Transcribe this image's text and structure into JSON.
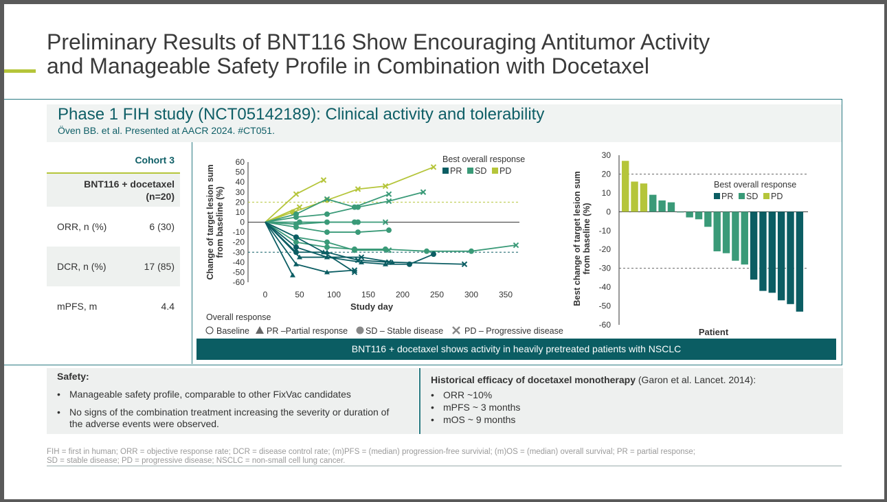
{
  "slide": {
    "title_line1": "Preliminary Results of BNT116 Show Encouraging Antitumor Activity",
    "title_line2": "and Manageable Safety Profile in Combination with Docetaxel",
    "subtitle": "Phase 1 FIH study (NCT05142189): Clinical activity and tolerability",
    "citation": "Öven BB. et al. Presented at AACR 2024. #CT051.",
    "banner": "BNT116 + docetaxel shows activity in heavily pretreated patients with NSCLC",
    "colors": {
      "teal_dark": "#0b5d63",
      "teal_mid": "#3a9a78",
      "lime": "#b5c53a"
    }
  },
  "table": {
    "cohort": "Cohort 3",
    "arm_line1": "BNT116 + docetaxel",
    "arm_line2": "(n=20)",
    "rows": [
      {
        "label": "ORR, n (%)",
        "value": "6 (30)"
      },
      {
        "label": "DCR, n (%)",
        "value": "17 (85)"
      },
      {
        "label": "mPFS, m",
        "value": "4.4"
      }
    ]
  },
  "safety": {
    "heading": "Safety:",
    "bullets": [
      "Manageable safety profile, comparable to other FixVac candidates",
      "No signs of the combination treatment increasing the severity or duration of",
      "the adverse events were observed."
    ]
  },
  "historical": {
    "heading_bold": "Historical efficacy of docetaxel monotherapy",
    "heading_rest": " (Garon et al. Lancet. 2014):",
    "bullets": [
      "ORR ~10%",
      "mPFS ~ 3 months",
      "mOS ~ 9 months"
    ]
  },
  "footnote": {
    "line1": "FIH = first in human; ORR = objective response rate; DCR = disease control rate; (m)PFS = (median) progression-free survivial; (m)OS = (median) overall survival; PR = partial response;",
    "line2": "SD = stable disease; PD = progressive disease; NSCLC = non-small cell lung cancer."
  },
  "chart_data": [
    {
      "type": "line",
      "title": "",
      "xlabel": "Study day",
      "ylabel": "Change of target lesion sum from baseline (%)",
      "xlim": [
        0,
        370
      ],
      "ylim": [
        -60,
        60
      ],
      "x_ticks": [
        0,
        50,
        100,
        150,
        200,
        250,
        300,
        350
      ],
      "y_ticks": [
        60,
        50,
        40,
        30,
        20,
        10,
        0,
        -10,
        -20,
        -30,
        -40,
        -50,
        -60
      ],
      "reference_lines": [
        20,
        -30
      ],
      "legend_title": "Best overall response",
      "legend": [
        {
          "label": "PR",
          "color": "#0b5d63"
        },
        {
          "label": "SD",
          "color": "#3a9a78"
        },
        {
          "label": "PD",
          "color": "#b5c53a"
        }
      ],
      "marker_legend": {
        "title": "Overall response",
        "items": [
          "Baseline",
          "PR –Partial response",
          "SD – Stable disease",
          "PD – Progressive disease"
        ]
      },
      "series": [
        {
          "name": "PD",
          "response": "PD",
          "points": [
            [
              0,
              0,
              "base"
            ],
            [
              45,
              28,
              "x"
            ],
            [
              85,
              42,
              "x"
            ]
          ]
        },
        {
          "name": "PD",
          "response": "PD",
          "points": [
            [
              0,
              0,
              "base"
            ],
            [
              40,
              10,
              "sd"
            ],
            [
              90,
              22,
              "sd"
            ],
            [
              135,
              33,
              "x"
            ],
            [
              175,
              36,
              "x"
            ],
            [
              245,
              55,
              "x"
            ]
          ]
        },
        {
          "name": "PD",
          "response": "PD",
          "points": [
            [
              0,
              0,
              "base"
            ],
            [
              50,
              15,
              "x"
            ]
          ]
        },
        {
          "name": "SD",
          "response": "SD",
          "points": [
            [
              0,
              0,
              "base"
            ],
            [
              45,
              8,
              "sd"
            ],
            [
              90,
              23,
              "x"
            ],
            [
              130,
              15,
              "sd"
            ],
            [
              180,
              28,
              "x"
            ]
          ]
        },
        {
          "name": "SD",
          "response": "SD",
          "points": [
            [
              0,
              0,
              "base"
            ],
            [
              45,
              5,
              "sd"
            ],
            [
              90,
              8,
              "sd"
            ],
            [
              135,
              15,
              "sd"
            ],
            [
              180,
              21,
              "x"
            ],
            [
              230,
              30,
              "x"
            ]
          ]
        },
        {
          "name": "SD",
          "response": "SD",
          "points": [
            [
              0,
              0,
              "base"
            ],
            [
              45,
              -2,
              "sd"
            ],
            [
              90,
              0,
              "sd"
            ],
            [
              135,
              0,
              "sd"
            ]
          ]
        },
        {
          "name": "SD",
          "response": "SD",
          "points": [
            [
              0,
              0,
              "base"
            ],
            [
              45,
              -5,
              "sd"
            ],
            [
              90,
              -10,
              "sd"
            ],
            [
              135,
              -10,
              "sd"
            ],
            [
              180,
              -8,
              "sd"
            ]
          ]
        },
        {
          "name": "SD",
          "response": "SD",
          "points": [
            [
              0,
              0,
              "base"
            ],
            [
              50,
              0,
              "sd"
            ],
            [
              130,
              0,
              "sd"
            ],
            [
              175,
              0,
              "x"
            ]
          ]
        },
        {
          "name": "SD",
          "response": "SD",
          "points": [
            [
              0,
              0,
              "base"
            ],
            [
              45,
              -20,
              "sd"
            ],
            [
              90,
              -25,
              "sd"
            ],
            [
              130,
              -27,
              "sd"
            ],
            [
              175,
              -27,
              "sd"
            ],
            [
              235,
              -29,
              "sd"
            ],
            [
              300,
              -29,
              "sd"
            ],
            [
              365,
              -23,
              "x"
            ]
          ]
        },
        {
          "name": "SD",
          "response": "SD",
          "points": [
            [
              0,
              0,
              "base"
            ],
            [
              45,
              -15,
              "sd"
            ],
            [
              90,
              -20,
              "sd"
            ],
            [
              130,
              -28,
              "sd"
            ],
            [
              180,
              -28,
              "x"
            ]
          ]
        },
        {
          "name": "PR",
          "response": "PR",
          "points": [
            [
              0,
              0,
              "base"
            ],
            [
              40,
              -53,
              "pr"
            ]
          ]
        },
        {
          "name": "PR",
          "response": "PR",
          "points": [
            [
              0,
              0,
              "base"
            ],
            [
              45,
              -42,
              "pr"
            ],
            [
              90,
              -50,
              "pr"
            ],
            [
              130,
              -48,
              "x"
            ]
          ]
        },
        {
          "name": "PR",
          "response": "PR",
          "points": [
            [
              0,
              0,
              "base"
            ],
            [
              50,
              -35,
              "pr"
            ],
            [
              90,
              -35,
              "pr"
            ],
            [
              140,
              -40,
              "pr"
            ],
            [
              175,
              -42,
              "pr"
            ],
            [
              210,
              -42,
              "sd"
            ],
            [
              245,
              -32,
              "sd"
            ]
          ]
        },
        {
          "name": "PR",
          "response": "PR",
          "points": [
            [
              0,
              0,
              "base"
            ],
            [
              45,
              -30,
              "sd"
            ],
            [
              90,
              -30,
              "pr"
            ],
            [
              135,
              -38,
              "x"
            ],
            [
              180,
              -40,
              "x"
            ]
          ]
        },
        {
          "name": "PR",
          "response": "PR",
          "points": [
            [
              0,
              0,
              "base"
            ],
            [
              45,
              -25,
              "sd"
            ],
            [
              90,
              -35,
              "pr"
            ],
            [
              140,
              -35,
              "x"
            ],
            [
              185,
              -40,
              "pr"
            ],
            [
              290,
              -42,
              "x"
            ]
          ]
        },
        {
          "name": "PR",
          "response": "PR",
          "points": [
            [
              0,
              0,
              "base"
            ],
            [
              45,
              -15,
              "sd"
            ],
            [
              85,
              -30,
              "pr"
            ],
            [
              130,
              -50,
              "x"
            ]
          ]
        }
      ]
    },
    {
      "type": "bar",
      "title": "",
      "xlabel": "Patient",
      "ylabel": "Best change of target lesion sum from baseline (%)",
      "ylim": [
        -60,
        30
      ],
      "y_ticks": [
        30,
        20,
        10,
        0,
        -10,
        -20,
        -30,
        -40,
        -50,
        -60
      ],
      "reference_lines": [
        20,
        -30
      ],
      "legend_title": "Best overall response",
      "legend": [
        {
          "label": "PR",
          "color": "#0b5d63"
        },
        {
          "label": "SD",
          "color": "#3a9a78"
        },
        {
          "label": "PD",
          "color": "#b5c53a"
        }
      ],
      "values": [
        27,
        16,
        15,
        9,
        6,
        5,
        0,
        -3,
        -4,
        -8,
        -21,
        -22,
        -26,
        -28,
        -36,
        -42,
        -43,
        -47,
        -49,
        -53
      ],
      "responses": [
        "PD",
        "PD",
        "PD",
        "SD",
        "SD",
        "SD",
        "SD",
        "SD",
        "SD",
        "SD",
        "SD",
        "SD",
        "SD",
        "SD",
        "PR",
        "PR",
        "PR",
        "PR",
        "PR",
        "PR"
      ]
    }
  ]
}
